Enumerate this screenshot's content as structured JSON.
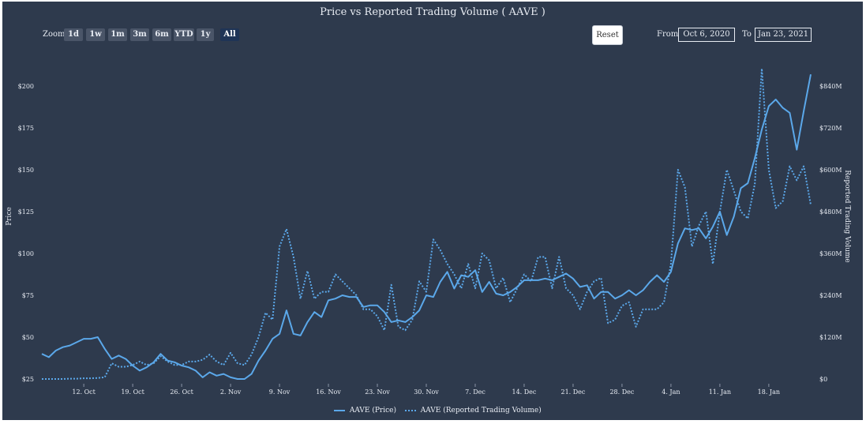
{
  "title": "Price vs Reported Trading Volume ( AAVE )",
  "zoom": {
    "label": "Zoom",
    "buttons": [
      "1d",
      "1w",
      "1m",
      "3m",
      "6m",
      "YTD",
      "1y",
      "All"
    ],
    "selected": "All"
  },
  "reset_label": "Reset",
  "range": {
    "from_label": "From",
    "from_value": "Oct 6, 2020",
    "to_label": "To",
    "to_value": "Jan 23, 2021"
  },
  "colors": {
    "background": "#2e3a4d",
    "series": "#5ba8ea",
    "text": "#e8ecf3"
  },
  "chart_data": {
    "type": "line",
    "title": "Price vs Reported Trading Volume ( AAVE )",
    "x_start": "Oct 6, 2020",
    "x_ticks": [
      "12. Oct",
      "19. Oct",
      "26. Oct",
      "2. Nov",
      "9. Nov",
      "16. Nov",
      "23. Nov",
      "30. Nov",
      "7. Dec",
      "14. Dec",
      "21. Dec",
      "28. Dec",
      "4. Jan",
      "11. Jan",
      "18. Jan"
    ],
    "y_left": {
      "label": "Price",
      "ticks": [
        "$25",
        "$50",
        "$75",
        "$100",
        "$125",
        "$150",
        "$175",
        "$200"
      ],
      "range": [
        25,
        200
      ]
    },
    "y_right": {
      "label": "Reported Trading Volume",
      "ticks": [
        "$0",
        "$120M",
        "$240M",
        "$360M",
        "$480M",
        "$600M",
        "$720M",
        "$840M"
      ],
      "range": [
        0,
        840
      ]
    },
    "series": [
      {
        "name": "AAVE (Price)",
        "axis": "left",
        "style": "solid",
        "unit": "USD",
        "values": [
          40,
          38,
          42,
          44,
          45,
          47,
          49,
          49,
          50,
          43,
          37,
          39,
          37,
          33,
          30,
          32,
          35,
          40,
          36,
          35,
          33,
          32,
          30,
          26,
          29,
          27,
          28,
          26,
          25,
          25,
          28,
          36,
          42,
          49,
          52,
          66,
          52,
          51,
          59,
          65,
          62,
          72,
          73,
          75,
          74,
          74,
          68,
          69,
          69,
          65,
          59,
          60,
          59,
          62,
          66,
          75,
          74,
          83,
          89,
          79,
          87,
          86,
          90,
          77,
          83,
          76,
          75,
          77,
          80,
          84,
          84,
          84,
          85,
          84,
          86,
          88,
          85,
          80,
          81,
          73,
          77,
          77,
          73,
          75,
          78,
          75,
          78,
          83,
          87,
          83,
          89,
          106,
          115,
          114,
          115,
          109,
          116,
          125,
          111,
          122,
          139,
          142,
          157,
          174,
          188,
          192,
          187,
          184,
          162,
          185,
          207
        ]
      },
      {
        "name": "AAVE (Reported Trading Volume)",
        "axis": "right",
        "style": "dotted",
        "unit": "USD M",
        "values": [
          0,
          0,
          0,
          0,
          1,
          1,
          2,
          2,
          3,
          5,
          45,
          35,
          35,
          40,
          50,
          40,
          45,
          65,
          50,
          40,
          40,
          50,
          50,
          55,
          70,
          50,
          40,
          75,
          45,
          40,
          70,
          120,
          190,
          170,
          380,
          430,
          350,
          230,
          310,
          230,
          250,
          250,
          300,
          280,
          260,
          240,
          200,
          200,
          180,
          140,
          270,
          150,
          140,
          170,
          280,
          250,
          400,
          370,
          330,
          300,
          260,
          330,
          260,
          360,
          340,
          260,
          290,
          220,
          260,
          300,
          280,
          350,
          350,
          260,
          350,
          260,
          240,
          200,
          250,
          280,
          290,
          160,
          170,
          210,
          220,
          150,
          200,
          200,
          200,
          220,
          330,
          600,
          550,
          380,
          440,
          480,
          330,
          480,
          600,
          540,
          480,
          460,
          560,
          890,
          600,
          490,
          510,
          610,
          570,
          610,
          500
        ]
      }
    ]
  },
  "legend": [
    "AAVE (Price)",
    "AAVE (Reported Trading Volume)"
  ]
}
